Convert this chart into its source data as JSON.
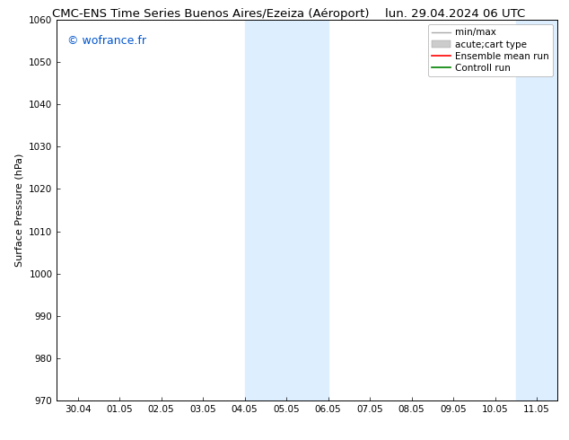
{
  "title_left": "CMC-ENS Time Series Buenos Aires/Ezeiza (Aéroport)",
  "title_right": "lun. 29.04.2024 06 UTC",
  "ylabel": "Surface Pressure (hPa)",
  "watermark": "© wofrance.fr",
  "watermark_color": "#0055cc",
  "ylim": [
    970,
    1060
  ],
  "yticks": [
    970,
    980,
    990,
    1000,
    1010,
    1020,
    1030,
    1040,
    1050,
    1060
  ],
  "xtick_labels": [
    "30.04",
    "01.05",
    "02.05",
    "03.05",
    "04.05",
    "05.05",
    "06.05",
    "07.05",
    "08.05",
    "09.05",
    "10.05",
    "11.05"
  ],
  "shaded_regions": [
    {
      "xstart": 4.0,
      "xend": 6.0,
      "color": "#ddeeff"
    },
    {
      "xstart": 10.5,
      "xend": 12.0,
      "color": "#ddeeff"
    }
  ],
  "legend_entries": [
    {
      "label": "min/max",
      "color": "#aaaaaa",
      "lw": 1.0,
      "type": "line"
    },
    {
      "label": "acute;cart type",
      "color": "#cccccc",
      "lw": 8,
      "type": "patch"
    },
    {
      "label": "Ensemble mean run",
      "color": "#ff0000",
      "lw": 1.2,
      "type": "line"
    },
    {
      "label": "Controll run",
      "color": "#008000",
      "lw": 1.2,
      "type": "line"
    }
  ],
  "bg_color": "#ffffff",
  "plot_bg_color": "#ffffff",
  "grid_color": "#cccccc",
  "border_color": "#000000",
  "title_fontsize": 9.5,
  "watermark_fontsize": 9,
  "ylabel_fontsize": 8,
  "tick_fontsize": 7.5,
  "legend_fontsize": 7.5
}
